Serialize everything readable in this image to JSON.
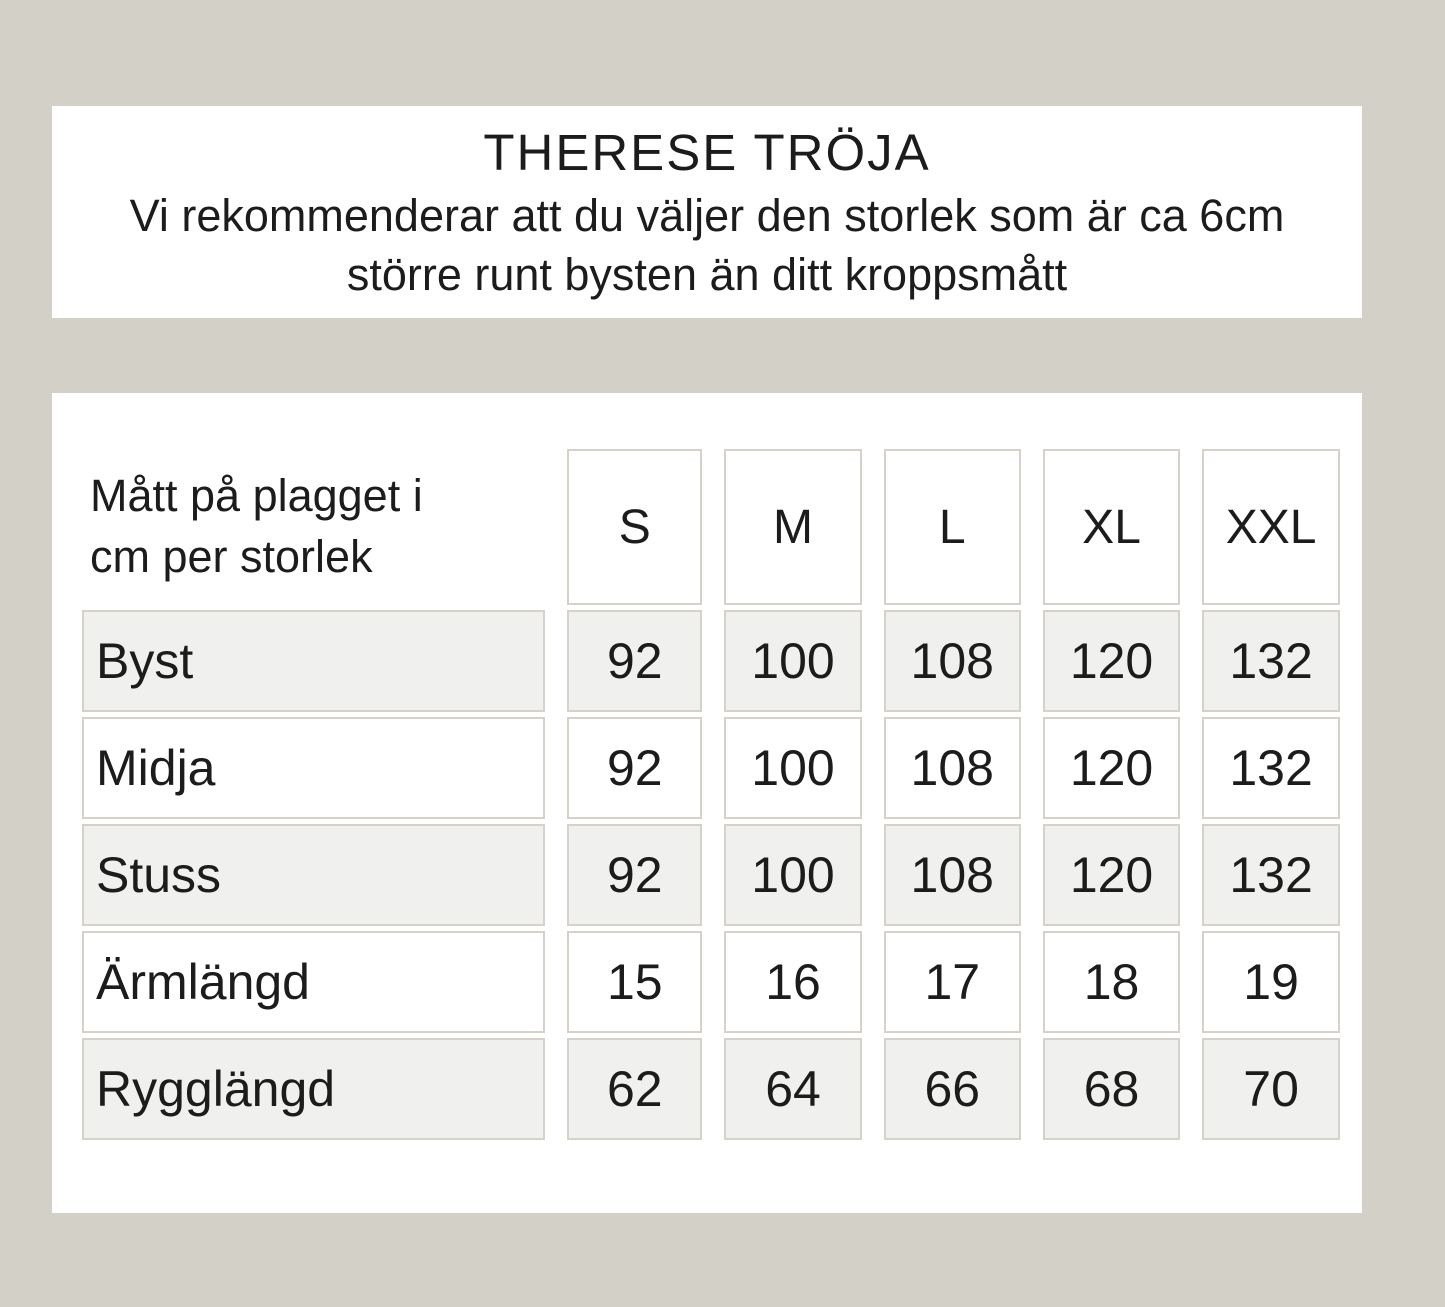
{
  "page": {
    "background_color": "#d3d0c8",
    "panel_color": "#ffffff",
    "accent_row_color": "#f0f0ee",
    "border_color": "#d6d2ca",
    "text_color": "#1c1c1c"
  },
  "header": {
    "title": "THERESE TRÖJA",
    "subtitle": "Vi rekommenderar att du väljer den storlek som är ca 6cm större runt bysten än ditt kroppsmått"
  },
  "size_table": {
    "corner_label": "Mått på plagget i cm per storlek",
    "columns": [
      "S",
      "M",
      "L",
      "XL",
      "XXL"
    ],
    "rows": [
      {
        "label": "Byst",
        "values": [
          "92",
          "100",
          "108",
          "120",
          "132"
        ]
      },
      {
        "label": "Midja",
        "values": [
          "92",
          "100",
          "108",
          "120",
          "132"
        ]
      },
      {
        "label": "Stuss",
        "values": [
          "92",
          "100",
          "108",
          "120",
          "132"
        ]
      },
      {
        "label": "Ärmlängd",
        "values": [
          "15",
          "16",
          "17",
          "18",
          "19"
        ]
      },
      {
        "label": "Rygglängd",
        "values": [
          "62",
          "64",
          "66",
          "68",
          "70"
        ]
      }
    ]
  },
  "chart_data": {
    "type": "table",
    "title": "THERESE TRÖJA",
    "subtitle": "Vi rekommenderar att du väljer den storlek som är ca 6cm större runt bysten än ditt kroppsmått",
    "unit": "cm",
    "columns": [
      "S",
      "M",
      "L",
      "XL",
      "XXL"
    ],
    "row_labels": [
      "Byst",
      "Midja",
      "Stuss",
      "Ärmlängd",
      "Rygglängd"
    ],
    "values": [
      [
        92,
        100,
        108,
        120,
        132
      ],
      [
        92,
        100,
        108,
        120,
        132
      ],
      [
        92,
        100,
        108,
        120,
        132
      ],
      [
        15,
        16,
        17,
        18,
        19
      ],
      [
        62,
        64,
        66,
        68,
        70
      ]
    ]
  }
}
